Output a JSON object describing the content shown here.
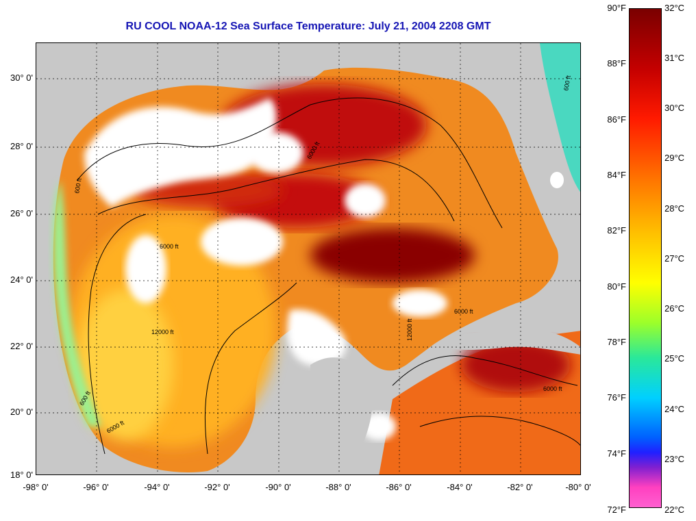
{
  "title": "RU COOL  NOAA-12  Sea Surface Temperature:  July 21, 2004 2208 GMT",
  "map": {
    "lat_labels": [
      "30° 0'",
      "28° 0'",
      "26° 0'",
      "24° 0'",
      "22° 0'",
      "20° 0'",
      "18° 0'"
    ],
    "lon_labels": [
      "-98° 0'",
      "-96° 0'",
      "-94° 0'",
      "-92° 0'",
      "-90° 0'",
      "-88° 0'",
      "-86° 0'",
      "-84° 0'",
      "-82° 0'",
      "-80° 0'"
    ],
    "contour_labels": [
      "600 ft",
      "6000 ft",
      "600 ft",
      "6000 ft",
      "12000 ft",
      "6000 ft",
      "12000 ft",
      "6000 ft",
      "6000 ft",
      "600 ft"
    ],
    "colors": {
      "land": "#c8c8c8",
      "cloud": "#ffffff",
      "grid": "#000000"
    }
  },
  "colorbar": {
    "fahrenheit_labels": [
      "90°F",
      "88°F",
      "86°F",
      "84°F",
      "82°F",
      "80°F",
      "78°F",
      "76°F",
      "74°F",
      "72°F"
    ],
    "celsius_labels": [
      "32°C",
      "31°C",
      "30°C",
      "29°C",
      "28°C",
      "27°C",
      "26°C",
      "25°C",
      "24°C",
      "23°C",
      "22°C"
    ]
  }
}
